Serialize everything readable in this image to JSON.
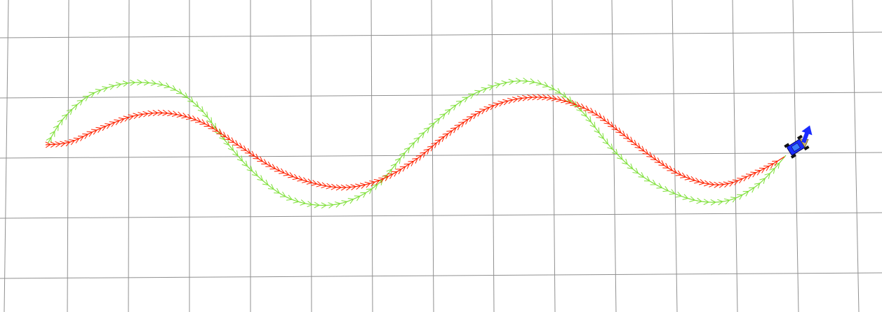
{
  "view": {
    "type": "3d-visualization-grid",
    "background_color": "#ffffff",
    "grid_color": "#909090"
  },
  "paths": [
    {
      "id": "reference",
      "color": "#7fe03a",
      "marker": "chevron"
    },
    {
      "id": "actual",
      "color": "#ff2200",
      "marker": "chevron"
    }
  ],
  "robot": {
    "icon": "robot-car-icon",
    "body_color": "#1a2cff",
    "arrow_color": "#1a2cff"
  }
}
